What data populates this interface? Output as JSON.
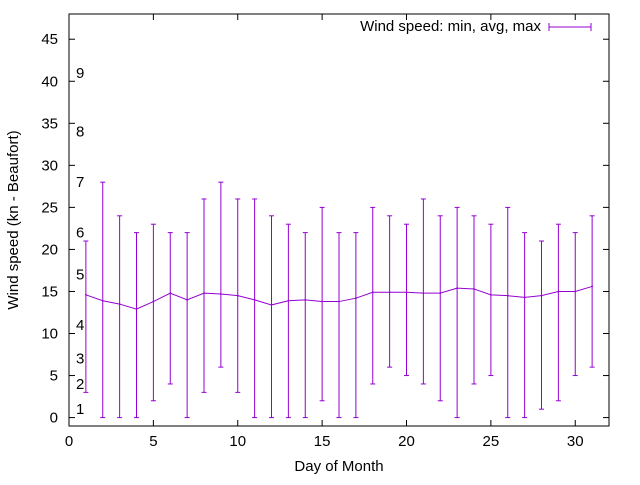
{
  "chart_data": {
    "type": "line",
    "xlabel": "Day of Month",
    "ylabel": "Wind speed (kn - Beaufort)",
    "xlim": [
      0,
      32
    ],
    "ylim": [
      -1,
      48
    ],
    "x_ticks": [
      0,
      5,
      10,
      15,
      20,
      25,
      30
    ],
    "y_ticks": [
      0,
      5,
      10,
      15,
      20,
      25,
      30,
      35,
      40,
      45
    ],
    "grid": false,
    "legend_position": "top-right",
    "beaufort_labels": [
      {
        "label": "1",
        "value": 1
      },
      {
        "label": "2",
        "value": 4
      },
      {
        "label": "3",
        "value": 7
      },
      {
        "label": "4",
        "value": 11
      },
      {
        "label": "5",
        "value": 17
      },
      {
        "label": "6",
        "value": 22
      },
      {
        "label": "7",
        "value": 28
      },
      {
        "label": "8",
        "value": 34
      },
      {
        "label": "9",
        "value": 41
      }
    ],
    "series": [
      {
        "name": "Wind speed: min, avg, max",
        "color": "#9400d3",
        "x": [
          1,
          2,
          3,
          4,
          5,
          6,
          7,
          8,
          9,
          10,
          11,
          12,
          13,
          14,
          15,
          16,
          17,
          18,
          19,
          20,
          21,
          22,
          23,
          24,
          25,
          26,
          27,
          28,
          29,
          30,
          31
        ],
        "min": [
          3,
          0,
          0,
          0,
          2,
          4,
          0,
          3,
          6,
          3,
          0,
          0,
          0,
          0,
          2,
          0,
          0,
          4,
          6,
          5,
          4,
          2,
          0,
          4,
          5,
          0,
          0,
          1,
          2,
          5,
          6
        ],
        "avg": [
          14.6,
          13.9,
          13.5,
          12.9,
          13.8,
          14.8,
          14.0,
          14.8,
          14.7,
          14.5,
          14.0,
          13.4,
          13.9,
          14.0,
          13.8,
          13.8,
          14.2,
          14.9,
          14.9,
          14.9,
          14.8,
          14.8,
          15.4,
          15.3,
          14.6,
          14.5,
          14.3,
          14.5,
          15.0,
          15.0,
          15.6
        ],
        "max": [
          21,
          28,
          24,
          22,
          23,
          22,
          22,
          26,
          28,
          26,
          26,
          24,
          23,
          22,
          25,
          22,
          22,
          25,
          24,
          23,
          26,
          24,
          25,
          24,
          23,
          25,
          22,
          21,
          23,
          22,
          24
        ]
      }
    ]
  }
}
